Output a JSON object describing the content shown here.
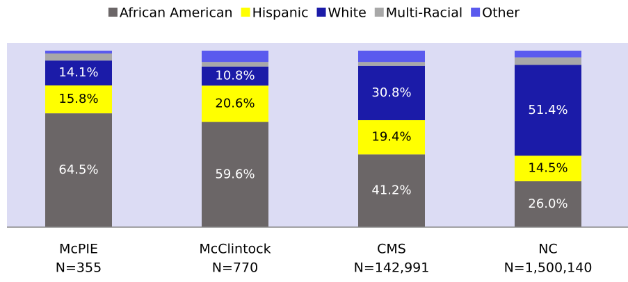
{
  "chart_data": {
    "type": "stacked-bar",
    "categories": [
      "McPIE",
      "McClintock",
      "CMS",
      "NC"
    ],
    "category_counts": [
      "N=355",
      "N=770",
      "N=142,991",
      "N=1,500,140"
    ],
    "ylim": [
      0,
      104.3
    ],
    "plot_background": "#dcdcf4",
    "legend": "top",
    "series": [
      {
        "name": "African American",
        "color": "#6b6667",
        "values": [
          64.5,
          59.6,
          41.2,
          26.0
        ],
        "value_labels": [
          "64.5%",
          "59.6%",
          "41.2%",
          "26.0%"
        ],
        "label_color": "#ffffff"
      },
      {
        "name": "Hispanic",
        "color": "#ffff00",
        "values": [
          15.8,
          20.6,
          19.4,
          14.5
        ],
        "value_labels": [
          "15.8%",
          "20.6%",
          "19.4%",
          "14.5%"
        ],
        "label_color": "#000000"
      },
      {
        "name": "White",
        "color": "#1b1ba8",
        "values": [
          14.1,
          10.8,
          30.8,
          51.4
        ],
        "value_labels": [
          "14.1%",
          "10.8%",
          "30.8%",
          "51.4%"
        ],
        "label_color": "#ffffff"
      },
      {
        "name": "Multi-Racial",
        "color": "#a8a8a8",
        "values": [
          4.0,
          2.6,
          2.2,
          4.3
        ]
      },
      {
        "name": "Other",
        "color": "#5a5aee",
        "values": [
          1.6,
          6.4,
          6.4,
          3.8
        ]
      }
    ]
  }
}
